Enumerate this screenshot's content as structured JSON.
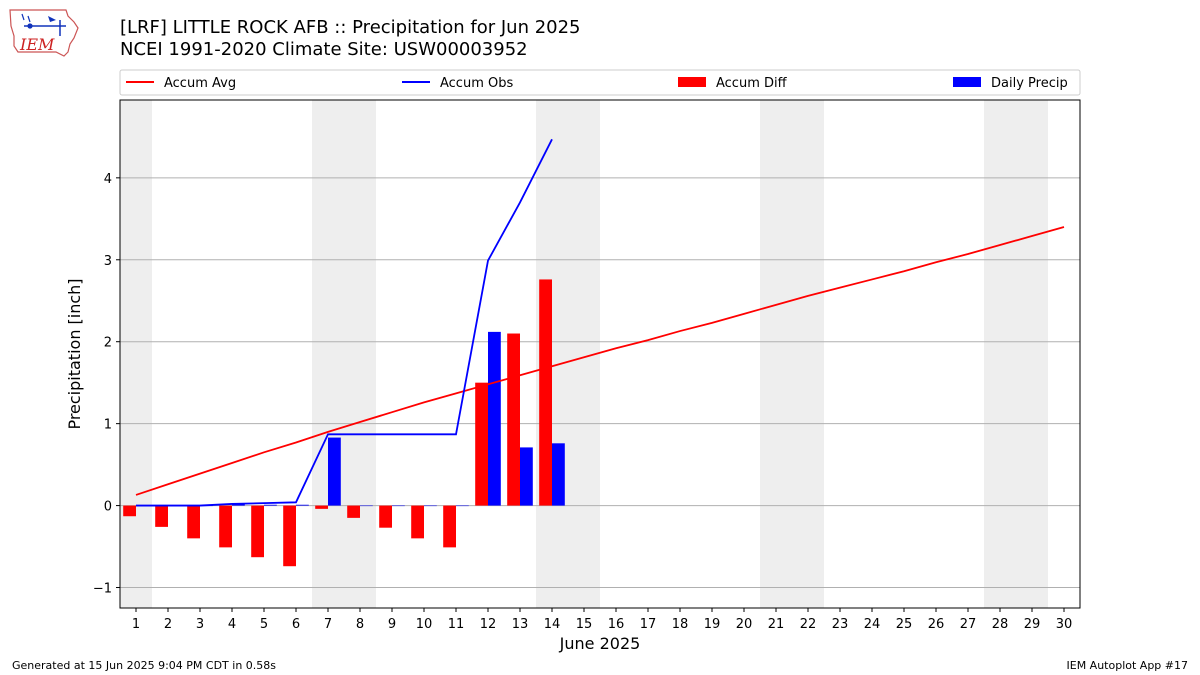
{
  "header": {
    "title_line1": "[LRF] LITTLE ROCK AFB :: Precipitation for Jun 2025",
    "title_line2": "NCEI 1991-2020 Climate Site: USW00003952",
    "logo_text": "IEM"
  },
  "footer": {
    "generated": "Generated at 15 Jun 2025 9:04 PM CDT in 0.58s",
    "app": "IEM Autoplot App #17"
  },
  "colors": {
    "avg": "#ff0000",
    "obs": "#0000ff",
    "diff": "#ff0000",
    "daily": "#0000ff",
    "weekend": "#eeeeee",
    "grid": "#b0b0b0"
  },
  "chart_data": {
    "type": "bar+line",
    "xlabel": "June 2025",
    "ylabel": "Precipitation [inch]",
    "xlim": [
      0.5,
      30.5
    ],
    "ylim": [
      -1.25,
      4.95
    ],
    "yticks": [
      -1,
      0,
      1,
      2,
      3,
      4
    ],
    "days": [
      1,
      2,
      3,
      4,
      5,
      6,
      7,
      8,
      9,
      10,
      11,
      12,
      13,
      14,
      15,
      16,
      17,
      18,
      19,
      20,
      21,
      22,
      23,
      24,
      25,
      26,
      27,
      28,
      29,
      30
    ],
    "weekend_spans": [
      [
        0.5,
        1.5
      ],
      [
        6.5,
        8.5
      ],
      [
        13.5,
        15.5
      ],
      [
        20.5,
        22.5
      ],
      [
        27.5,
        29.5
      ]
    ],
    "legend": {
      "position": "top, spanning plot width",
      "entries": [
        {
          "label": "Accum Avg",
          "kind": "line",
          "color": "#ff0000"
        },
        {
          "label": "Accum Obs",
          "kind": "line",
          "color": "#0000ff"
        },
        {
          "label": "Accum Diff",
          "kind": "bar",
          "color": "#ff0000"
        },
        {
          "label": "Daily Precip",
          "kind": "bar",
          "color": "#0000ff"
        }
      ]
    },
    "series": [
      {
        "name": "Accum Avg",
        "type": "line",
        "x": [
          1,
          2,
          3,
          4,
          5,
          6,
          7,
          8,
          9,
          10,
          11,
          12,
          13,
          14,
          15,
          16,
          17,
          18,
          19,
          20,
          21,
          22,
          23,
          24,
          25,
          26,
          27,
          28,
          29,
          30
        ],
        "values": [
          0.13,
          0.26,
          0.39,
          0.52,
          0.65,
          0.77,
          0.9,
          1.02,
          1.14,
          1.26,
          1.37,
          1.48,
          1.59,
          1.7,
          1.81,
          1.92,
          2.02,
          2.13,
          2.23,
          2.34,
          2.45,
          2.56,
          2.66,
          2.76,
          2.86,
          2.97,
          3.07,
          3.18,
          3.29,
          3.4
        ]
      },
      {
        "name": "Accum Obs",
        "type": "line",
        "x": [
          1,
          2,
          3,
          4,
          5,
          6,
          7,
          8,
          9,
          10,
          11,
          12,
          13,
          14
        ],
        "values": [
          0.0,
          0.0,
          0.0,
          0.02,
          0.03,
          0.04,
          0.87,
          0.87,
          0.87,
          0.87,
          0.87,
          2.99,
          3.7,
          4.47
        ]
      },
      {
        "name": "Accum Diff",
        "type": "bar",
        "x": [
          1,
          2,
          3,
          4,
          5,
          6,
          7,
          8,
          9,
          10,
          11,
          12,
          13,
          14
        ],
        "values": [
          -0.13,
          -0.26,
          -0.4,
          -0.51,
          -0.63,
          -0.74,
          -0.04,
          -0.15,
          -0.27,
          -0.4,
          -0.51,
          1.5,
          2.1,
          2.76
        ]
      },
      {
        "name": "Daily Precip",
        "type": "bar",
        "x": [
          1,
          2,
          3,
          4,
          5,
          6,
          7,
          8,
          9,
          10,
          11,
          12,
          13,
          14
        ],
        "values": [
          0.0,
          0.0,
          0.0,
          0.02,
          0.01,
          0.01,
          0.83,
          0.0,
          0.0,
          0.0,
          0.0,
          2.12,
          0.71,
          0.76
        ]
      }
    ]
  }
}
